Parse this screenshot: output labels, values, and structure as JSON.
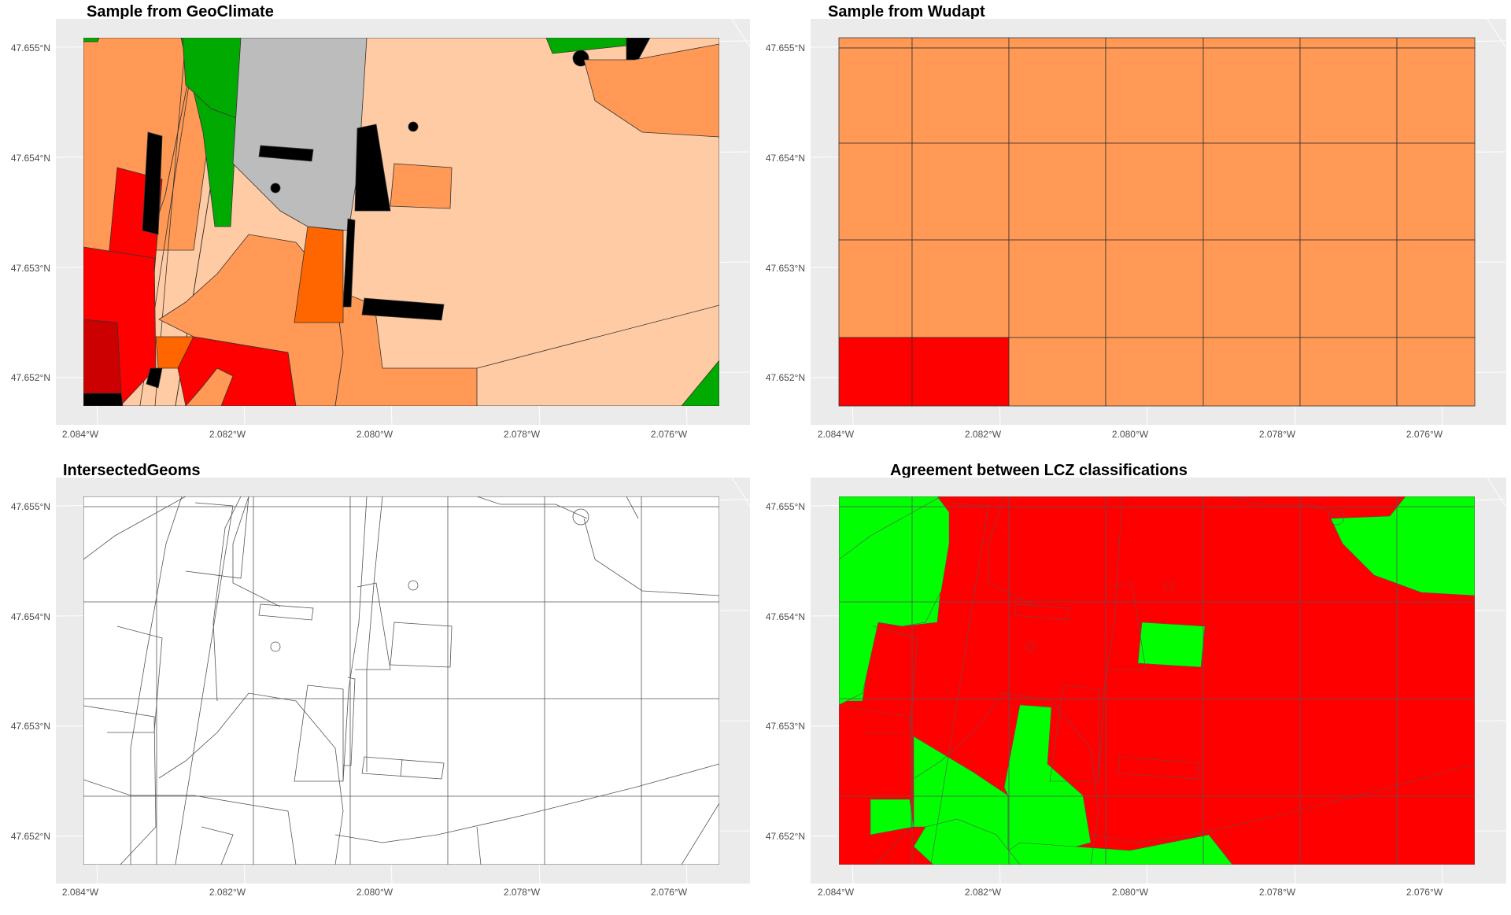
{
  "chart_data": [
    {
      "type": "map",
      "title": "Sample from GeoClimate",
      "x_ticks": [
        "2.084°W",
        "2.082°W",
        "2.080°W",
        "2.078°W",
        "2.076°W"
      ],
      "y_ticks": [
        "47.655°N",
        "47.654°N",
        "47.653°N",
        "47.652°N"
      ],
      "x_tick_values": [
        -2.084,
        -2.082,
        -2.08,
        -2.078,
        -2.076
      ],
      "y_tick_values": [
        47.655,
        47.654,
        47.653,
        47.652
      ],
      "xlim": [
        -2.084,
        -2.0754
      ],
      "ylim": [
        47.65175,
        47.6551
      ],
      "colors": {
        "panel_bg": "#ebebeb",
        "outline": "#333333",
        "light_orange": "#ffcba4",
        "orange": "#ff9955",
        "dark_orange": "#ff6600",
        "red": "#ff0000",
        "dark_red": "#cc0000",
        "green": "#00aa00",
        "grey": "#bcbcbc",
        "black": "#000000"
      }
    },
    {
      "type": "map",
      "title": "Sample from Wudapt",
      "x_ticks": [
        "2.084°W",
        "2.082°W",
        "2.080°W",
        "2.078°W",
        "2.076°W"
      ],
      "y_ticks": [
        "47.655°N",
        "47.654°N",
        "47.653°N",
        "47.652°N"
      ],
      "x_tick_values": [
        -2.084,
        -2.082,
        -2.08,
        -2.078,
        -2.076
      ],
      "y_tick_values": [
        47.655,
        47.654,
        47.653,
        47.652
      ],
      "xlim": [
        -2.084,
        -2.0754
      ],
      "ylim": [
        47.65175,
        47.6551
      ],
      "colors": {
        "orange": "#ff9955",
        "red": "#ff0000"
      }
    },
    {
      "type": "map",
      "title": "IntersectedGeoms",
      "x_ticks": [
        "2.084°W",
        "2.082°W",
        "2.080°W",
        "2.078°W",
        "2.076°W"
      ],
      "y_ticks": [
        "47.655°N",
        "47.654°N",
        "47.653°N",
        "47.652°N"
      ],
      "x_tick_values": [
        -2.084,
        -2.082,
        -2.08,
        -2.078,
        -2.076
      ],
      "y_tick_values": [
        47.655,
        47.654,
        47.653,
        47.652
      ],
      "xlim": [
        -2.084,
        -2.0754
      ],
      "ylim": [
        47.65175,
        47.6551
      ],
      "colors": {
        "fill": "#ffffff"
      }
    },
    {
      "type": "map",
      "title": "Agreement between LCZ classifications",
      "x_ticks": [
        "2.084°W",
        "2.082°W",
        "2.080°W",
        "2.078°W",
        "2.076°W"
      ],
      "y_ticks": [
        "47.655°N",
        "47.654°N",
        "47.653°N",
        "47.652°N"
      ],
      "x_tick_values": [
        -2.084,
        -2.082,
        -2.08,
        -2.078,
        -2.076
      ],
      "y_tick_values": [
        47.655,
        47.654,
        47.653,
        47.652
      ],
      "xlim": [
        -2.084,
        -2.0754
      ],
      "ylim": [
        47.65175,
        47.6551
      ],
      "colors": {
        "agree": "#00ff00",
        "disagree": "#ff0000"
      }
    }
  ]
}
